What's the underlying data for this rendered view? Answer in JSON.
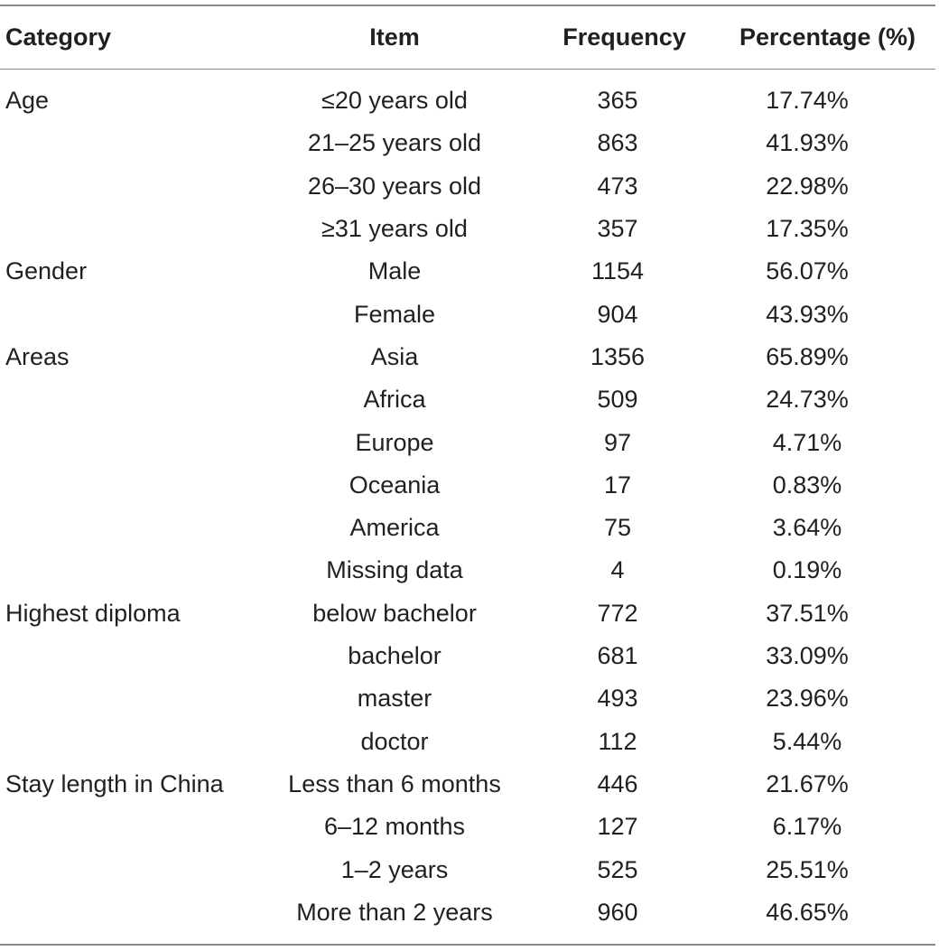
{
  "table": {
    "headers": {
      "category": "Category",
      "item": "Item",
      "frequency": "Frequency",
      "percentage": "Percentage (%)"
    },
    "rows": [
      {
        "category": "Age",
        "item": "≤20 years old",
        "frequency": "365",
        "percentage": "17.74%"
      },
      {
        "category": "",
        "item": "21–25 years old",
        "frequency": "863",
        "percentage": "41.93%"
      },
      {
        "category": "",
        "item": "26–30 years old",
        "frequency": "473",
        "percentage": "22.98%"
      },
      {
        "category": "",
        "item": "≥31 years old",
        "frequency": "357",
        "percentage": "17.35%"
      },
      {
        "category": "Gender",
        "item": "Male",
        "frequency": "1154",
        "percentage": "56.07%"
      },
      {
        "category": "",
        "item": "Female",
        "frequency": "904",
        "percentage": "43.93%"
      },
      {
        "category": "Areas",
        "item": "Asia",
        "frequency": "1356",
        "percentage": "65.89%"
      },
      {
        "category": "",
        "item": "Africa",
        "frequency": "509",
        "percentage": "24.73%"
      },
      {
        "category": "",
        "item": "Europe",
        "frequency": "97",
        "percentage": "4.71%"
      },
      {
        "category": "",
        "item": "Oceania",
        "frequency": "17",
        "percentage": "0.83%"
      },
      {
        "category": "",
        "item": "America",
        "frequency": "75",
        "percentage": "3.64%"
      },
      {
        "category": "",
        "item": "Missing data",
        "frequency": "4",
        "percentage": "0.19%"
      },
      {
        "category": "Highest diploma",
        "item": "below bachelor",
        "frequency": "772",
        "percentage": "37.51%"
      },
      {
        "category": "",
        "item": "bachelor",
        "frequency": "681",
        "percentage": "33.09%"
      },
      {
        "category": "",
        "item": "master",
        "frequency": "493",
        "percentage": "23.96%"
      },
      {
        "category": "",
        "item": "doctor",
        "frequency": "112",
        "percentage": "5.44%"
      },
      {
        "category": "Stay length in China",
        "item": "Less than 6 months",
        "frequency": "446",
        "percentage": "21.67%"
      },
      {
        "category": "",
        "item": "6–12 months",
        "frequency": "127",
        "percentage": "6.17%"
      },
      {
        "category": "",
        "item": "1–2 years",
        "frequency": "525",
        "percentage": "25.51%"
      },
      {
        "category": "",
        "item": "More than 2 years",
        "frequency": "960",
        "percentage": "46.65%"
      }
    ]
  }
}
